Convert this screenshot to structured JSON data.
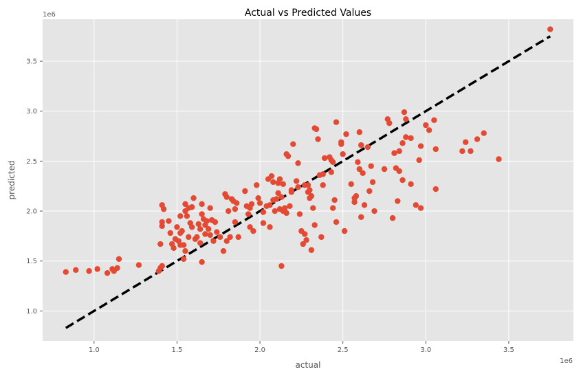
{
  "chart_data": {
    "type": "scatter",
    "title": "Actual vs Predicted Values",
    "xlabel": "actual",
    "ylabel": "predicted",
    "x_offset_label": "1e6",
    "y_offset_label": "1e6",
    "xlim": [
      0.69,
      3.89
    ],
    "ylim": [
      0.7,
      3.92
    ],
    "xticks": [
      1.0,
      1.5,
      2.0,
      2.5,
      3.0,
      3.5
    ],
    "xtick_labels": [
      "1.0",
      "1.5",
      "2.0",
      "2.5",
      "3.0",
      "3.5"
    ],
    "yticks": [
      1.0,
      1.5,
      2.0,
      2.5,
      3.0,
      3.5
    ],
    "ytick_labels": [
      "1.0",
      "1.5",
      "2.0",
      "2.5",
      "3.0",
      "3.5"
    ],
    "grid": true,
    "background": "#e5e5e5",
    "point_color": "#e24a33",
    "reference_line": {
      "x": [
        0.83,
        3.75
      ],
      "y": [
        0.83,
        3.75
      ],
      "style": "dashed",
      "color": "#000000"
    },
    "points": [
      [
        0.83,
        1.39
      ],
      [
        0.89,
        1.41
      ],
      [
        0.97,
        1.4
      ],
      [
        1.02,
        1.42
      ],
      [
        1.08,
        1.38
      ],
      [
        1.11,
        1.42
      ],
      [
        1.12,
        1.4
      ],
      [
        1.14,
        1.43
      ],
      [
        1.15,
        1.52
      ],
      [
        1.27,
        1.46
      ],
      [
        1.39,
        1.4
      ],
      [
        1.4,
        1.43
      ],
      [
        1.41,
        1.45
      ],
      [
        1.4,
        1.67
      ],
      [
        1.41,
        1.85
      ],
      [
        1.41,
        1.89
      ],
      [
        1.42,
        2.02
      ],
      [
        1.41,
        2.06
      ],
      [
        1.45,
        1.9
      ],
      [
        1.46,
        1.78
      ],
      [
        1.47,
        1.67
      ],
      [
        1.48,
        1.63
      ],
      [
        1.49,
        1.72
      ],
      [
        1.5,
        1.84
      ],
      [
        1.51,
        1.7
      ],
      [
        1.52,
        1.66
      ],
      [
        1.52,
        1.78
      ],
      [
        1.52,
        1.95
      ],
      [
        1.53,
        1.8
      ],
      [
        1.54,
        1.66
      ],
      [
        1.54,
        1.52
      ],
      [
        1.55,
        1.6
      ],
      [
        1.55,
        2.0
      ],
      [
        1.55,
        2.07
      ],
      [
        1.56,
        1.95
      ],
      [
        1.57,
        2.03
      ],
      [
        1.57,
        1.74
      ],
      [
        1.58,
        1.88
      ],
      [
        1.59,
        1.84
      ],
      [
        1.59,
        2.04
      ],
      [
        1.6,
        2.13
      ],
      [
        1.61,
        1.72
      ],
      [
        1.62,
        1.74
      ],
      [
        1.63,
        1.87
      ],
      [
        1.64,
        1.82
      ],
      [
        1.64,
        1.68
      ],
      [
        1.65,
        1.49
      ],
      [
        1.65,
        1.97
      ],
      [
        1.65,
        2.07
      ],
      [
        1.66,
        1.92
      ],
      [
        1.67,
        1.86
      ],
      [
        1.67,
        1.77
      ],
      [
        1.68,
        1.9
      ],
      [
        1.69,
        1.82
      ],
      [
        1.7,
        1.76
      ],
      [
        1.7,
        2.03
      ],
      [
        1.71,
        1.91
      ],
      [
        1.72,
        1.7
      ],
      [
        1.73,
        1.89
      ],
      [
        1.74,
        1.79
      ],
      [
        1.76,
        1.74
      ],
      [
        1.78,
        1.6
      ],
      [
        1.79,
        2.17
      ],
      [
        1.8,
        1.7
      ],
      [
        1.8,
        2.14
      ],
      [
        1.81,
        2.0
      ],
      [
        1.82,
        1.74
      ],
      [
        1.83,
        2.12
      ],
      [
        1.84,
        2.1
      ],
      [
        1.85,
        2.02
      ],
      [
        1.85,
        1.89
      ],
      [
        1.86,
        2.08
      ],
      [
        1.87,
        1.74
      ],
      [
        1.91,
        2.2
      ],
      [
        1.92,
        2.05
      ],
      [
        1.93,
        1.97
      ],
      [
        1.94,
        2.03
      ],
      [
        1.94,
        1.84
      ],
      [
        1.95,
        2.07
      ],
      [
        1.96,
        1.8
      ],
      [
        1.98,
        2.26
      ],
      [
        1.99,
        2.13
      ],
      [
        2.0,
        2.08
      ],
      [
        2.02,
        1.88
      ],
      [
        2.02,
        1.99
      ],
      [
        2.04,
        2.05
      ],
      [
        2.05,
        2.32
      ],
      [
        2.06,
        2.06
      ],
      [
        2.06,
        1.84
      ],
      [
        2.07,
        2.35
      ],
      [
        2.08,
        2.11
      ],
      [
        2.08,
        2.29
      ],
      [
        2.09,
        2.0
      ],
      [
        2.1,
        2.12
      ],
      [
        2.11,
        2.18
      ],
      [
        2.11,
        2.28
      ],
      [
        2.12,
        2.32
      ],
      [
        2.12,
        2.02
      ],
      [
        2.13,
        1.45
      ],
      [
        2.13,
        2.14
      ],
      [
        2.14,
        2.0
      ],
      [
        2.14,
        2.27
      ],
      [
        2.15,
        2.03
      ],
      [
        2.16,
        1.98
      ],
      [
        2.16,
        2.57
      ],
      [
        2.17,
        2.55
      ],
      [
        2.18,
        2.05
      ],
      [
        2.19,
        2.19
      ],
      [
        2.19,
        2.21
      ],
      [
        2.2,
        2.67
      ],
      [
        2.22,
        2.3
      ],
      [
        2.23,
        2.48
      ],
      [
        2.23,
        2.24
      ],
      [
        2.24,
        1.97
      ],
      [
        2.25,
        1.8
      ],
      [
        2.26,
        1.67
      ],
      [
        2.27,
        2.26
      ],
      [
        2.27,
        1.77
      ],
      [
        2.28,
        1.71
      ],
      [
        2.29,
        2.19
      ],
      [
        2.29,
        2.26
      ],
      [
        2.3,
        2.13
      ],
      [
        2.3,
        2.21
      ],
      [
        2.31,
        1.61
      ],
      [
        2.31,
        2.15
      ],
      [
        2.32,
        2.03
      ],
      [
        2.33,
        1.86
      ],
      [
        2.33,
        2.83
      ],
      [
        2.34,
        2.82
      ],
      [
        2.35,
        2.72
      ],
      [
        2.36,
        2.36
      ],
      [
        2.37,
        1.74
      ],
      [
        2.38,
        2.37
      ],
      [
        2.38,
        2.26
      ],
      [
        2.39,
        2.53
      ],
      [
        2.42,
        2.54
      ],
      [
        2.43,
        2.39
      ],
      [
        2.43,
        2.51
      ],
      [
        2.44,
        2.03
      ],
      [
        2.44,
        2.49
      ],
      [
        2.45,
        2.11
      ],
      [
        2.46,
        1.89
      ],
      [
        2.46,
        2.89
      ],
      [
        2.49,
        2.69
      ],
      [
        2.49,
        2.67
      ],
      [
        2.5,
        2.57
      ],
      [
        2.51,
        1.8
      ],
      [
        2.52,
        2.77
      ],
      [
        2.55,
        2.27
      ],
      [
        2.57,
        2.13
      ],
      [
        2.57,
        2.09
      ],
      [
        2.58,
        2.15
      ],
      [
        2.59,
        2.49
      ],
      [
        2.6,
        2.79
      ],
      [
        2.6,
        2.42
      ],
      [
        2.61,
        1.94
      ],
      [
        2.61,
        2.66
      ],
      [
        2.62,
        2.38
      ],
      [
        2.63,
        2.06
      ],
      [
        2.65,
        2.64
      ],
      [
        2.66,
        2.2
      ],
      [
        2.67,
        2.45
      ],
      [
        2.68,
        2.29
      ],
      [
        2.69,
        2.0
      ],
      [
        2.75,
        2.42
      ],
      [
        2.77,
        2.92
      ],
      [
        2.78,
        2.88
      ],
      [
        2.8,
        1.93
      ],
      [
        2.81,
        2.58
      ],
      [
        2.82,
        2.43
      ],
      [
        2.83,
        2.1
      ],
      [
        2.84,
        2.6
      ],
      [
        2.84,
        2.4
      ],
      [
        2.86,
        2.68
      ],
      [
        2.86,
        2.31
      ],
      [
        2.87,
        2.99
      ],
      [
        2.88,
        2.74
      ],
      [
        2.88,
        2.92
      ],
      [
        2.91,
        2.73
      ],
      [
        2.91,
        2.27
      ],
      [
        2.94,
        2.06
      ],
      [
        2.96,
        2.51
      ],
      [
        2.97,
        2.65
      ],
      [
        2.97,
        2.03
      ],
      [
        3.0,
        2.86
      ],
      [
        3.02,
        2.81
      ],
      [
        3.05,
        2.91
      ],
      [
        3.06,
        2.22
      ],
      [
        3.06,
        2.62
      ],
      [
        3.22,
        2.6
      ],
      [
        3.24,
        2.69
      ],
      [
        3.27,
        2.6
      ],
      [
        3.31,
        2.72
      ],
      [
        3.35,
        2.78
      ],
      [
        3.44,
        2.52
      ],
      [
        3.75,
        3.82
      ]
    ]
  }
}
